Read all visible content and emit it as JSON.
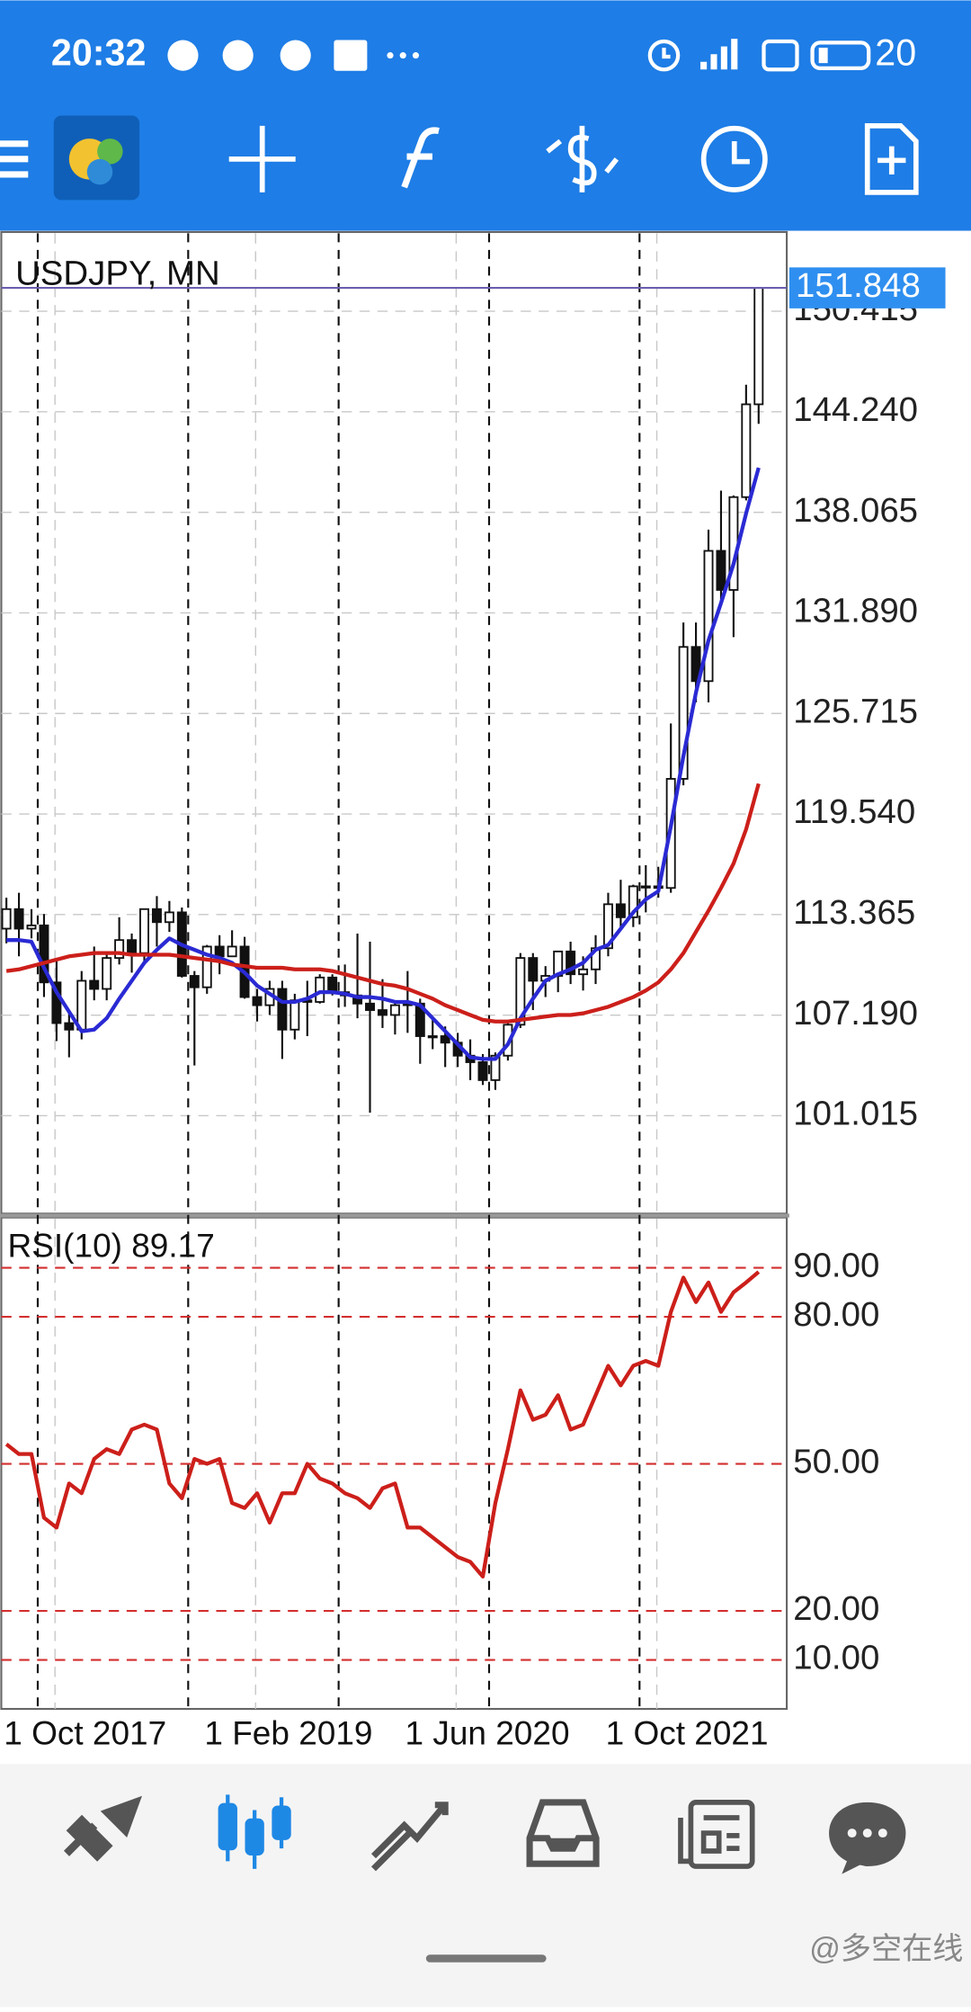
{
  "status_bar": {
    "time": "20:32",
    "battery": "20"
  },
  "chart_data": [
    {
      "type": "candlestick",
      "title": "USDJPY, MN",
      "categories": [
        "1 Oct 2017",
        null,
        null,
        null,
        null,
        null,
        null,
        null,
        null,
        null,
        null,
        null,
        null,
        null,
        null,
        null,
        "1 Feb 2019",
        null,
        null,
        null,
        null,
        null,
        null,
        null,
        null,
        null,
        null,
        null,
        null,
        null,
        null,
        null,
        "1 Jun 2020",
        null,
        null,
        null,
        null,
        null,
        null,
        null,
        null,
        null,
        null,
        null,
        null,
        null,
        null,
        null,
        "1 Oct 2021",
        null,
        null,
        null,
        null,
        null,
        null,
        null,
        null,
        null,
        null,
        null,
        null
      ],
      "open": [
        112.5,
        113.7,
        112.5,
        112.7,
        109.2,
        106.7,
        106.3,
        109.3,
        108.8,
        110.7,
        111.8,
        111.0,
        113.7,
        112.9,
        113.5,
        109.6,
        108.9,
        111.4,
        110.8,
        111.4,
        108.3,
        107.8,
        108.8,
        106.3,
        108.1,
        108.0,
        109.5,
        108.6,
        108.4,
        107.9,
        107.5,
        107.2,
        107.8,
        107.9,
        105.9,
        105.9,
        105.5,
        104.7,
        104.3,
        103.2,
        104.7,
        106.6,
        110.7,
        109.3,
        109.6,
        111.1,
        109.7,
        110.0,
        111.3,
        114.0,
        113.2,
        115.1,
        115.1,
        115.0,
        121.7,
        129.8,
        127.7,
        135.7,
        133.3,
        139.0,
        144.7
      ],
      "high": [
        114.4,
        114.7,
        113.7,
        113.4,
        110.5,
        107.3,
        109.9,
        111.4,
        111.0,
        113.2,
        112.2,
        113.7,
        114.5,
        114.2,
        113.8,
        109.9,
        111.5,
        112.1,
        112.4,
        112.0,
        108.8,
        109.3,
        109.3,
        108.5,
        109.3,
        109.7,
        109.7,
        110.3,
        112.2,
        111.7,
        109.4,
        108.1,
        109.9,
        108.2,
        107.0,
        106.5,
        106.1,
        105.7,
        104.8,
        104.9,
        106.7,
        111.0,
        111.0,
        110.2,
        111.1,
        111.7,
        110.8,
        112.1,
        114.7,
        115.5,
        115.2,
        116.4,
        116.3,
        125.1,
        131.3,
        131.3,
        137.0,
        139.4,
        139.1,
        145.9,
        151.9
      ],
      "low": [
        111.6,
        110.8,
        111.9,
        108.3,
        105.6,
        104.6,
        105.7,
        108.1,
        108.1,
        110.3,
        109.8,
        110.4,
        111.4,
        112.3,
        109.5,
        104.1,
        108.5,
        109.7,
        110.8,
        108.2,
        106.8,
        107.2,
        104.5,
        105.7,
        105.9,
        107.9,
        108.4,
        107.7,
        107.0,
        101.2,
        106.4,
        106.0,
        106.1,
        104.2,
        105.1,
        104.0,
        104.0,
        103.2,
        102.9,
        102.6,
        104.4,
        106.4,
        107.5,
        108.3,
        108.6,
        109.1,
        108.7,
        109.1,
        110.8,
        112.5,
        112.6,
        113.5,
        114.4,
        114.7,
        121.3,
        126.4,
        126.4,
        132.5,
        130.4,
        138.8,
        143.5
      ],
      "close": [
        113.7,
        112.5,
        112.7,
        109.2,
        106.7,
        106.3,
        109.3,
        108.8,
        110.7,
        111.8,
        111.0,
        113.7,
        112.9,
        113.5,
        109.6,
        108.9,
        111.4,
        110.8,
        111.4,
        108.3,
        107.8,
        108.8,
        106.3,
        108.1,
        108.0,
        109.5,
        108.6,
        108.4,
        107.9,
        107.5,
        107.2,
        107.8,
        107.9,
        105.9,
        105.9,
        105.5,
        104.7,
        104.3,
        103.2,
        104.7,
        106.6,
        110.7,
        109.3,
        109.6,
        111.1,
        109.7,
        110.0,
        111.3,
        114.0,
        113.2,
        115.1,
        115.1,
        115.0,
        121.7,
        129.8,
        127.7,
        135.7,
        133.3,
        139.0,
        144.7,
        151.848
      ],
      "ma_lines": [
        {
          "color": "#2a2ad4",
          "values": [
            111.8,
            111.8,
            111.7,
            110.1,
            108.6,
            107.4,
            106.2,
            106.3,
            107.0,
            108.2,
            109.3,
            110.4,
            111.2,
            111.9,
            111.5,
            111.2,
            110.9,
            110.7,
            110.4,
            109.8,
            109.0,
            108.5,
            108.0,
            108.0,
            108.2,
            108.6,
            108.6,
            108.5,
            108.3,
            108.3,
            108.2,
            108.0,
            108.0,
            107.8,
            107.0,
            106.2,
            105.4,
            104.6,
            104.5,
            104.5,
            105.4,
            107.0,
            108.2,
            109.3,
            109.7,
            110.0,
            110.4,
            111.2,
            111.5,
            112.5,
            113.5,
            114.3,
            114.8,
            118.8,
            123.1,
            127.0,
            130.2,
            132.5,
            134.9,
            138.0,
            140.8
          ]
        },
        {
          "color": "#cc1f1a",
          "values": [
            109.9,
            110.0,
            110.2,
            110.4,
            110.6,
            110.8,
            110.9,
            111.0,
            111.0,
            111.0,
            110.9,
            110.9,
            110.9,
            110.9,
            110.8,
            110.7,
            110.6,
            110.5,
            110.3,
            110.2,
            110.1,
            110.1,
            110.1,
            110.0,
            110.0,
            110.0,
            109.9,
            109.7,
            109.5,
            109.3,
            109.1,
            109.0,
            108.8,
            108.5,
            108.2,
            107.8,
            107.5,
            107.2,
            106.9,
            106.8,
            106.8,
            106.9,
            107.0,
            107.1,
            107.2,
            107.2,
            107.3,
            107.5,
            107.7,
            108.0,
            108.3,
            108.7,
            109.2,
            110.0,
            111.0,
            112.3,
            113.6,
            115.0,
            116.5,
            118.6,
            121.4
          ]
        }
      ],
      "last_price": 151.848,
      "ylim": [
        95.0,
        155.2
      ],
      "yticks": [
        101.015,
        {
          "value": 107.19,
          "label": "107.190"
        },
        113.365,
        {
          "value": 119.54,
          "label": "119.540"
        },
        125.715,
        {
          "value": 131.89,
          "label": "131.890"
        },
        138.065,
        {
          "value": 144.24,
          "label": "144.240"
        },
        150.415
      ],
      "grid": true
    },
    {
      "type": "line",
      "title": "RSI(10) 89.17",
      "color": "#cc1f1a",
      "values": [
        54,
        52,
        52,
        39,
        37,
        46,
        44,
        51,
        53,
        52,
        57,
        58,
        57,
        46,
        43,
        51,
        50,
        51,
        42,
        41,
        44,
        38,
        44,
        44,
        50,
        47,
        46,
        44,
        43,
        41,
        45,
        46,
        37,
        37,
        35,
        33,
        31,
        30,
        27,
        42,
        53,
        65,
        59,
        60,
        64,
        57,
        58,
        64,
        70,
        66,
        70,
        71,
        70,
        81,
        88,
        83,
        87,
        81,
        85,
        87,
        89.17
      ],
      "ylim": [
        0,
        100
      ],
      "yticks": [
        {
          "value": 10,
          "label": "10.00"
        },
        {
          "value": 20,
          "label": "20.00"
        },
        {
          "value": 50,
          "label": "50.00"
        },
        {
          "value": 80,
          "label": "80.00"
        },
        {
          "value": 90,
          "label": "90.00"
        }
      ],
      "level_color": "#d32f2f"
    }
  ],
  "watermark": "@多空在线"
}
